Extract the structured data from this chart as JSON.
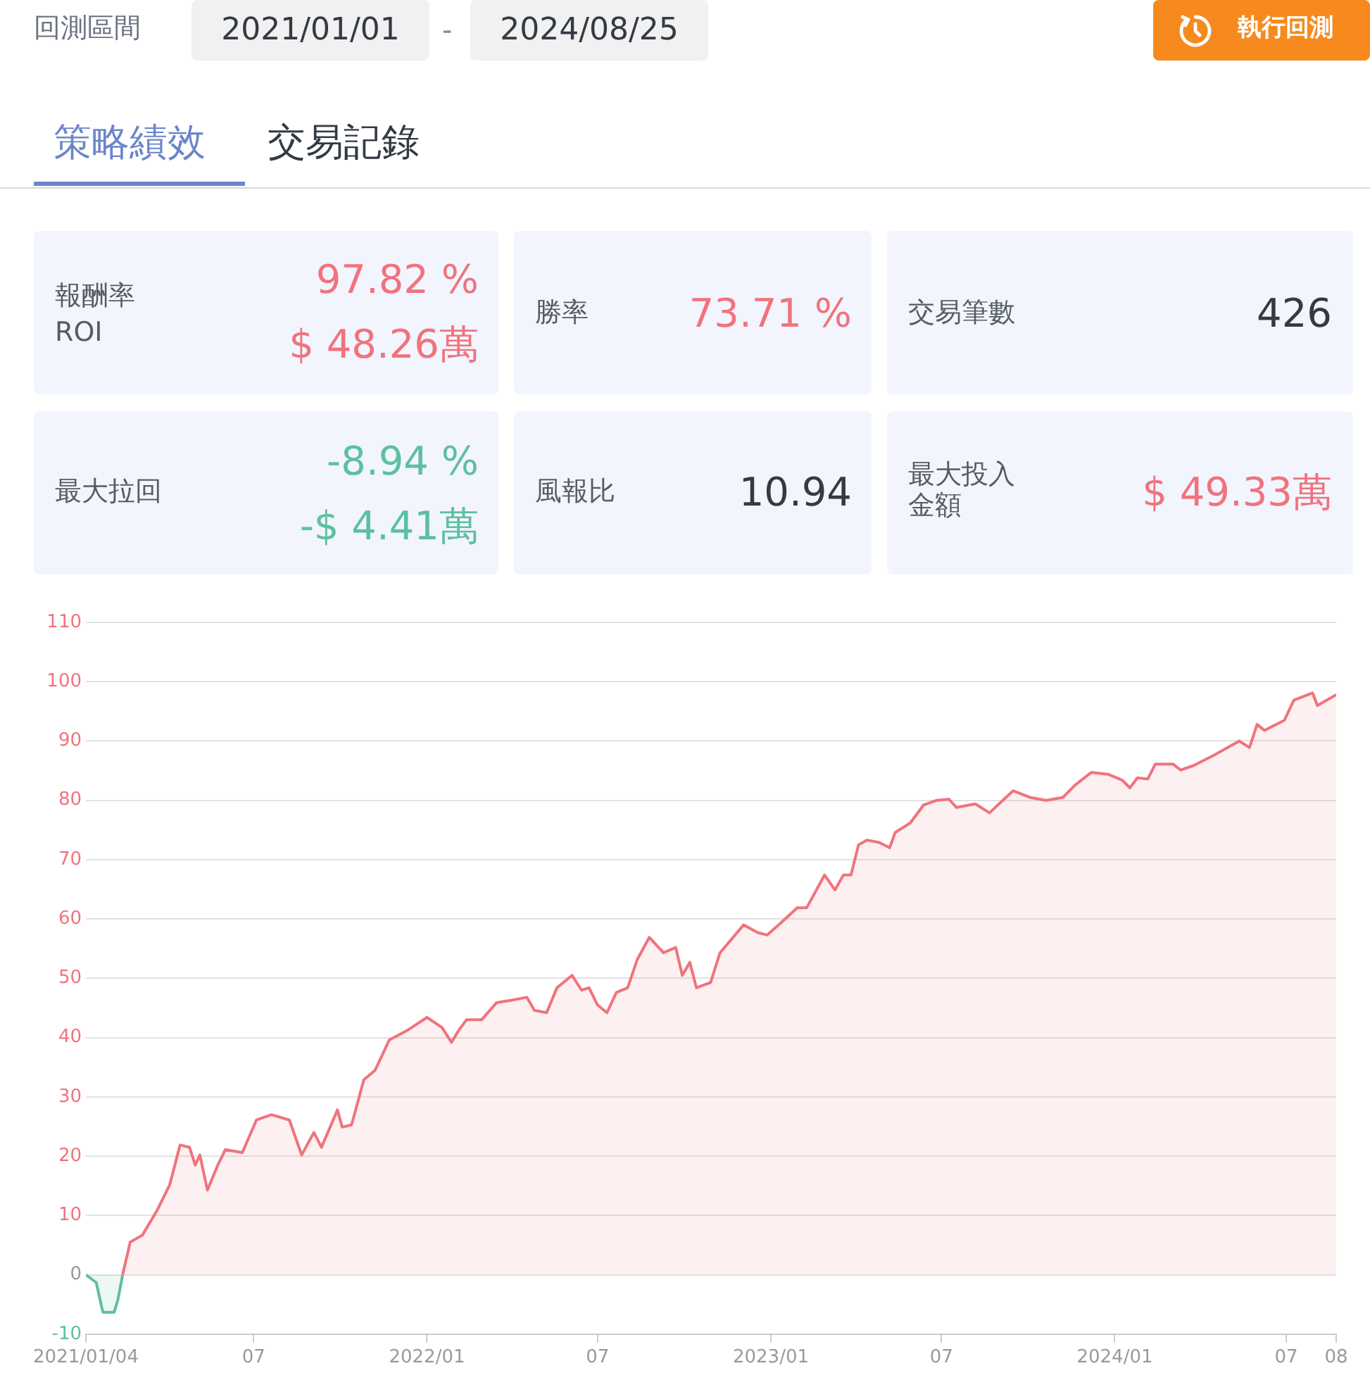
{
  "chart_data": {
    "type": "area",
    "annotations": [
      "回測區間",
      "2021/01/01",
      "-",
      "2024/08/25",
      "執行回測",
      "策略績效",
      "交易記錄",
      "報酬率",
      "ROI",
      "97.82 %",
      "$ 48.26萬",
      "勝率",
      "73.71 %",
      "交易筆數",
      "426",
      "最大拉回",
      "-8.94 %",
      "-$ 4.41萬",
      "風報比",
      "10.94",
      "最大投入金額",
      "$ 49.33萬"
    ],
    "series": [
      {
        "color": "#5cc0a0",
        "x": [
          "2021-01-04",
          "2021-01-15",
          "2021-01-22",
          "2021-02-03",
          "2021-02-07",
          "2021-02-12"
        ],
        "values": [
          0,
          -1.3,
          -6.3,
          -6.3,
          -4.2,
          0
        ]
      },
      {
        "color": "#f0737d",
        "x": [
          "2021-02-12",
          "2021-02-20",
          "2021-03-05",
          "2021-03-21",
          "2021-04-03",
          "2021-04-14",
          "2021-04-24",
          "2021-04-30",
          "2021-05-05",
          "2021-05-13",
          "2021-05-24",
          "2021-06-01",
          "2021-06-19",
          "2021-07-04",
          "2021-07-20",
          "2021-08-08",
          "2021-08-21",
          "2021-09-03",
          "2021-09-11",
          "2021-09-28",
          "2021-10-03",
          "2021-10-13",
          "2021-10-26",
          "2021-11-07",
          "2021-11-22",
          "2021-12-12",
          "2022-01-01",
          "2022-01-17",
          "2022-01-27",
          "2022-02-04",
          "2022-02-12",
          "2022-02-28",
          "2022-03-16",
          "2022-04-01",
          "2022-04-17",
          "2022-04-25",
          "2022-05-08",
          "2022-05-19",
          "2022-06-04",
          "2022-06-14",
          "2022-06-22",
          "2022-07-01",
          "2022-07-11",
          "2022-07-21",
          "2022-08-02",
          "2022-08-12",
          "2022-08-25",
          "2022-09-09",
          "2022-09-22",
          "2022-09-29",
          "2022-10-07",
          "2022-10-14",
          "2022-10-29",
          "2022-11-08",
          "2022-12-03",
          "2022-12-18",
          "2022-12-28",
          "2023-01-12",
          "2023-01-29",
          "2023-02-08",
          "2023-02-27",
          "2023-03-10",
          "2023-03-19",
          "2023-03-27",
          "2023-04-04",
          "2023-04-13",
          "2023-04-26",
          "2023-05-07",
          "2023-05-13",
          "2023-05-29",
          "2023-06-12",
          "2023-06-26",
          "2023-07-09",
          "2023-07-17",
          "2023-08-06",
          "2023-08-21",
          "2023-09-15",
          "2023-10-03",
          "2023-10-20",
          "2023-11-07",
          "2023-11-20",
          "2023-12-07",
          "2023-12-25",
          "2024-01-09",
          "2024-01-17",
          "2024-01-25",
          "2024-02-05",
          "2024-02-13",
          "2024-03-03",
          "2024-03-11",
          "2024-03-25",
          "2024-04-15",
          "2024-05-12",
          "2024-05-23",
          "2024-05-31",
          "2024-06-08",
          "2024-06-29",
          "2024-07-09",
          "2024-07-29",
          "2024-08-03",
          "2024-08-23"
        ],
        "values": [
          0,
          5.5,
          6.7,
          11.0,
          15.2,
          21.9,
          21.5,
          18.5,
          20.2,
          14.3,
          18.5,
          21.1,
          20.6,
          26.1,
          27.0,
          26.1,
          20.2,
          24.0,
          21.5,
          27.8,
          24.9,
          25.3,
          32.9,
          34.5,
          39.6,
          41.3,
          43.4,
          41.7,
          39.2,
          41.3,
          43.0,
          43.0,
          45.9,
          46.3,
          46.8,
          44.6,
          44.2,
          48.4,
          50.5,
          48.0,
          48.4,
          45.5,
          44.2,
          47.6,
          48.4,
          53.1,
          56.9,
          54.3,
          55.2,
          50.5,
          52.7,
          48.4,
          49.3,
          54.3,
          59.0,
          57.7,
          57.3,
          59.4,
          61.9,
          61.9,
          67.4,
          64.9,
          67.4,
          67.4,
          72.5,
          73.3,
          72.9,
          72.0,
          74.6,
          76.2,
          79.2,
          80.0,
          80.2,
          78.8,
          79.4,
          77.9,
          81.6,
          80.5,
          80.0,
          80.5,
          82.6,
          84.7,
          84.4,
          83.4,
          82.1,
          83.8,
          83.6,
          86.1,
          86.1,
          85.1,
          85.9,
          87.6,
          90.0,
          88.9,
          92.8,
          91.8,
          93.5,
          96.9,
          98.1,
          96.0,
          97.8
        ]
      }
    ],
    "xlim": [
      "2021-01-04",
      "2024-08-23"
    ],
    "xticks": [
      {
        "value": "2021-01-04",
        "label": "2021/01/04"
      },
      {
        "value": "2021-07-01",
        "label": "07"
      },
      {
        "value": "2022-01-01",
        "label": "2022/01"
      },
      {
        "value": "2022-07-01",
        "label": "07"
      },
      {
        "value": "2023-01-01",
        "label": "2023/01"
      },
      {
        "value": "2023-07-01",
        "label": "07"
      },
      {
        "value": "2024-01-01",
        "label": "2024/01"
      },
      {
        "value": "2024-07-01",
        "label": "07"
      },
      {
        "value": "2024-08-23",
        "label": "08"
      }
    ],
    "ylim": [
      -10,
      110
    ],
    "yticks": [
      -10,
      0,
      10,
      20,
      30,
      40,
      50,
      60,
      70,
      80,
      90,
      100,
      110
    ],
    "grid": "y",
    "marker": "none"
  }
}
